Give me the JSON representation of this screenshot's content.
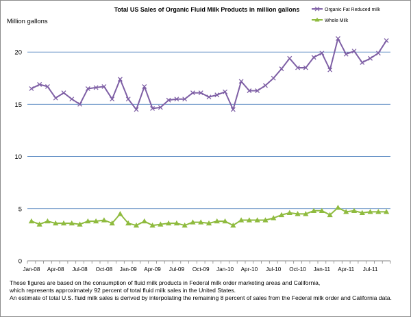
{
  "chart_data": {
    "type": "line",
    "title": "Total US Sales of Organic Fluid Milk Products in million gallons",
    "ylabel": "Million gallons",
    "xlabel": "",
    "ylim": [
      0,
      22.5
    ],
    "yticks": [
      0,
      5,
      10,
      15,
      20
    ],
    "grid": true,
    "legend_position": "top-right",
    "categories": [
      "Jan-08",
      "Feb-08",
      "Mar-08",
      "Apr-08",
      "May-08",
      "Jun-08",
      "Jul-08",
      "Aug-08",
      "Sep-08",
      "Oct-08",
      "Nov-08",
      "Dec-08",
      "Jan-09",
      "Feb-09",
      "Mar-09",
      "Apr-09",
      "May-09",
      "Jun-09",
      "Jul-09",
      "Aug-09",
      "Sep-09",
      "Oct-09",
      "Nov-09",
      "Dec-09",
      "Jan-10",
      "Feb-10",
      "Mar-10",
      "Apr-10",
      "May-10",
      "Jun-10",
      "Jul-10",
      "Aug-10",
      "Sep-10",
      "Oct-10",
      "Nov-10",
      "Dec-10",
      "Jan-11",
      "Feb-11",
      "Mar-11",
      "Apr-11",
      "May-11",
      "Jun-11",
      "Jul-11",
      "Aug-11",
      "Sep-11"
    ],
    "xtick_labels": [
      "Jan-08",
      "Apr-08",
      "Jul-08",
      "Oct-08",
      "Jan-09",
      "Apr-09",
      "Jul-09",
      "Oct-09",
      "Jan-10",
      "Apr-10",
      "Jul-10",
      "Oct-10",
      "Jan-11",
      "Apr-11",
      "Jul-11"
    ],
    "series": [
      {
        "name": "Organic Fat Reduced milk",
        "color": "#7e5fa5",
        "marker": "x",
        "values": [
          16.5,
          16.9,
          16.7,
          15.6,
          16.1,
          15.5,
          15.0,
          16.5,
          16.6,
          16.7,
          15.5,
          17.4,
          15.5,
          14.5,
          16.7,
          14.6,
          14.7,
          15.4,
          15.5,
          15.5,
          16.1,
          16.1,
          15.7,
          15.9,
          16.2,
          14.5,
          17.2,
          16.3,
          16.3,
          16.8,
          17.5,
          18.4,
          19.4,
          18.5,
          18.5,
          19.5,
          19.9,
          18.3,
          21.3,
          19.8,
          20.1,
          19.0,
          19.4,
          19.9,
          21.1
        ]
      },
      {
        "name": "Whole Milk",
        "color": "#8fbb3f",
        "marker": "triangle",
        "values": [
          3.8,
          3.5,
          3.8,
          3.6,
          3.6,
          3.6,
          3.5,
          3.8,
          3.8,
          3.9,
          3.6,
          4.5,
          3.6,
          3.4,
          3.8,
          3.4,
          3.5,
          3.6,
          3.6,
          3.4,
          3.7,
          3.7,
          3.6,
          3.8,
          3.8,
          3.4,
          3.9,
          3.9,
          3.9,
          3.9,
          4.1,
          4.4,
          4.6,
          4.5,
          4.5,
          4.8,
          4.8,
          4.4,
          5.1,
          4.7,
          4.8,
          4.6,
          4.7,
          4.7,
          4.7
        ]
      }
    ]
  },
  "notes": [
    "These figures are based on the consumption of fluid milk products in Federal milk order marketing areas and California,",
    " which represents approximately 92 percent of total fluid milk sales in the United States.",
    "An estimate of total U.S. fluid milk sales is derived by interpolating the remaining 8 percent of sales from the Federal milk order and California data."
  ]
}
